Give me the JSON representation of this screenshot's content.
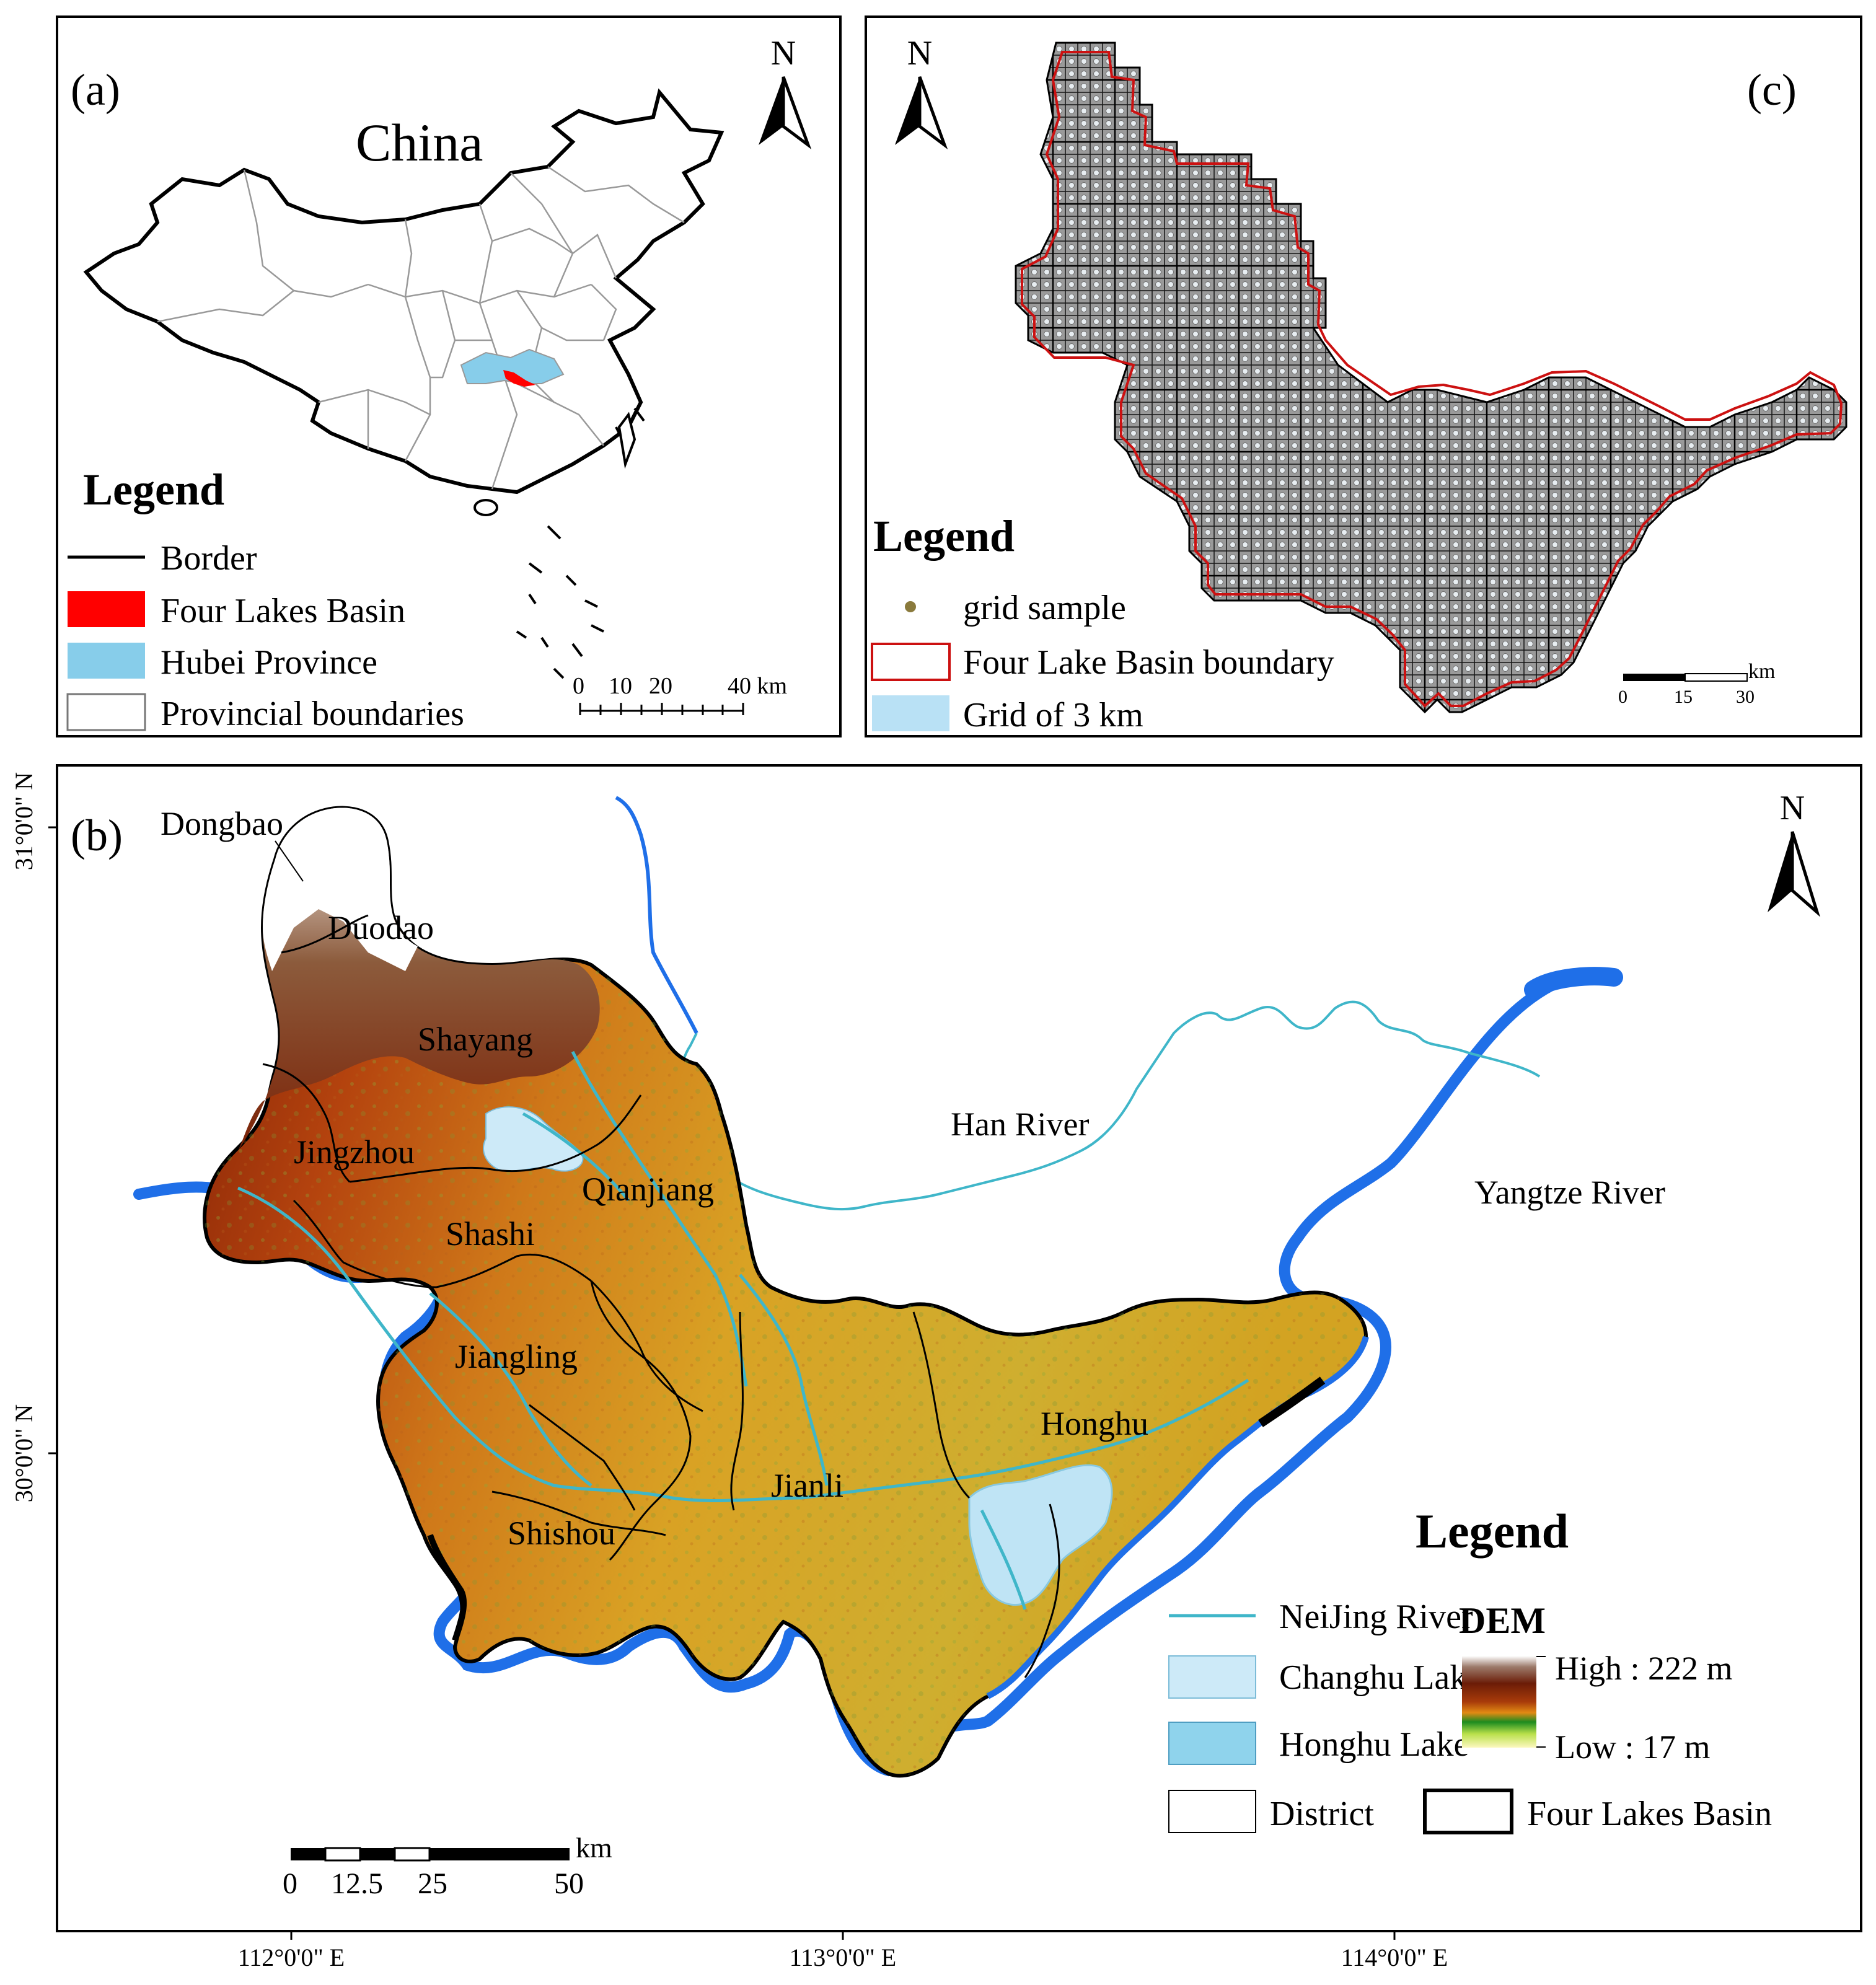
{
  "panel_a": {
    "label": "(a)",
    "country_name": "China",
    "north": "N",
    "legend": {
      "title": "Legend",
      "items": [
        {
          "label": "Border"
        },
        {
          "label": "Four Lakes Basin",
          "color": "#ff0000"
        },
        {
          "label": "Hubei Province",
          "color": "#87cdea"
        },
        {
          "label": "Provincial boundaries"
        }
      ]
    },
    "scale": {
      "ticks": [
        "0",
        "10",
        "20",
        "40 km"
      ]
    }
  },
  "panel_c": {
    "label": "(c)",
    "north": "N",
    "legend": {
      "title": "Legend",
      "items": [
        {
          "label": "grid sample",
          "color": "#8a7a3c"
        },
        {
          "label": "Four Lake Basin boundary",
          "color": "#cc1111"
        },
        {
          "label": "Grid of 3 km",
          "color": "#b9e1f5"
        }
      ]
    },
    "scale": {
      "unit": "km",
      "ticks": [
        "0",
        "15",
        "30"
      ]
    }
  },
  "panel_b": {
    "label": "(b)",
    "north": "N",
    "places": [
      "Dongbao",
      "Duodao",
      "Shayang",
      "Jingzhou",
      "Qianjiang",
      "Shashi",
      "Jiangling",
      "Jianli",
      "Shishou",
      "Honghu"
    ],
    "rivers": {
      "han": "Han River",
      "yangtze": "Yangtze River"
    },
    "lat_labels": [
      "31°0'0\" N",
      "30°0'0\" N"
    ],
    "lon_labels": [
      "112°0'0\" E",
      "113°0'0\" E",
      "114°0'0\" E"
    ],
    "scale": {
      "unit": "km",
      "ticks": [
        "0",
        "12.5",
        "25",
        "50"
      ]
    },
    "legend": {
      "title": "Legend",
      "neijing": "NeiJing River",
      "changhu": "Changhu Lake",
      "honghu": "Honghu Lake",
      "district": "District",
      "basin": "Four Lakes Basin",
      "dem_title": "DEM",
      "dem_high": "High : 222 m",
      "dem_low": "Low : 17 m"
    },
    "colors": {
      "river": "#1f6fe8",
      "neijing": "#3fb6c9",
      "changhu": "#cdeaf8",
      "honghu": "#8fd3ec",
      "dem_low": "#dba824",
      "dem_high": "#8b2a08"
    }
  }
}
